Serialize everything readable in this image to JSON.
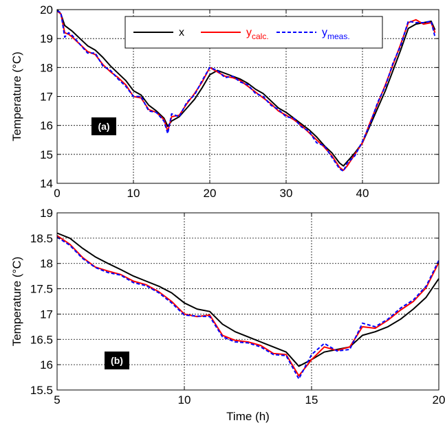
{
  "chart_data": [
    {
      "type": "line",
      "panel_label": "(a)",
      "ylabel": "Temperature (°C)",
      "xlabel": "",
      "xlim": [
        0,
        50
      ],
      "ylim": [
        14,
        20
      ],
      "xticks": [
        0,
        10,
        20,
        30,
        40
      ],
      "yticks": [
        14,
        15,
        16,
        17,
        18,
        19,
        20
      ],
      "grid": true,
      "legend": {
        "position": "top-center",
        "entries": [
          {
            "label": "x",
            "sub": "",
            "color": "#000000",
            "dash": "solid"
          },
          {
            "label": "y",
            "sub": "calc.",
            "color": "#ff0000",
            "dash": "solid"
          },
          {
            "label": "y",
            "sub": "meas.",
            "color": "#0000ff",
            "dash": "dashed"
          }
        ]
      },
      "series": [
        {
          "key": "x",
          "color": "#000000",
          "dash": "solid",
          "x": [
            0,
            0.5,
            1,
            1.5,
            2,
            3,
            4,
            5,
            6,
            7,
            8,
            9,
            10,
            11,
            12,
            13,
            14,
            14.5,
            15,
            16,
            17,
            18,
            19,
            20,
            21,
            22,
            23,
            24,
            25,
            26,
            27,
            28,
            29,
            30,
            31,
            32,
            33,
            34,
            35,
            36,
            37,
            37.5,
            38,
            39,
            40,
            41,
            42,
            43,
            44,
            45,
            46,
            47,
            48,
            49,
            49.5
          ],
          "y": [
            20,
            19.85,
            19.45,
            19.35,
            19.25,
            19.0,
            18.75,
            18.6,
            18.35,
            18.05,
            17.8,
            17.55,
            17.2,
            17.05,
            16.7,
            16.5,
            16.25,
            15.97,
            16.15,
            16.3,
            16.6,
            16.9,
            17.3,
            17.75,
            17.9,
            17.8,
            17.7,
            17.6,
            17.45,
            17.25,
            17.1,
            16.85,
            16.6,
            16.45,
            16.25,
            16.05,
            15.85,
            15.6,
            15.3,
            15.05,
            14.7,
            14.6,
            14.75,
            15.05,
            15.4,
            16.0,
            16.6,
            17.2,
            17.9,
            18.6,
            19.35,
            19.5,
            19.55,
            19.6,
            19.3
          ]
        },
        {
          "key": "ycalc",
          "color": "#ff0000",
          "dash": "solid",
          "x": [
            0,
            0.5,
            1,
            1.5,
            2,
            3,
            4,
            5,
            6,
            7,
            8,
            9,
            10,
            11,
            12,
            13,
            14,
            14.5,
            15,
            16,
            17,
            18,
            19,
            20,
            21,
            22,
            23,
            24,
            25,
            26,
            27,
            28,
            29,
            30,
            31,
            32,
            33,
            34,
            35,
            36,
            37,
            37.5,
            38,
            39,
            40,
            41,
            42,
            43,
            44,
            45,
            46,
            47,
            48,
            49,
            49.5
          ],
          "y": [
            19.95,
            19.85,
            19.2,
            19.15,
            19.05,
            18.8,
            18.55,
            18.45,
            18.1,
            17.85,
            17.65,
            17.4,
            17.0,
            16.95,
            16.55,
            16.45,
            16.2,
            15.8,
            16.3,
            16.35,
            16.75,
            17.1,
            17.5,
            18.0,
            17.85,
            17.7,
            17.65,
            17.55,
            17.35,
            17.15,
            16.95,
            16.75,
            16.5,
            16.35,
            16.2,
            16.0,
            15.75,
            15.5,
            15.25,
            14.95,
            14.55,
            14.45,
            14.6,
            15.0,
            15.4,
            16.1,
            16.75,
            17.4,
            18.1,
            18.8,
            19.55,
            19.65,
            19.5,
            19.55,
            19.2
          ]
        },
        {
          "key": "ymeas",
          "color": "#0000ff",
          "dash": "dashed",
          "x": [
            0,
            0.5,
            1,
            1.5,
            2,
            3,
            4,
            5,
            6,
            7,
            8,
            9,
            10,
            11,
            12,
            13,
            14,
            14.5,
            15,
            16,
            17,
            18,
            19,
            20,
            21,
            22,
            23,
            24,
            25,
            26,
            27,
            28,
            29,
            30,
            31,
            32,
            33,
            34,
            35,
            36,
            37,
            37.5,
            38,
            39,
            40,
            41,
            42,
            43,
            44,
            45,
            46,
            47,
            48,
            49,
            49.5
          ],
          "y": [
            19.95,
            19.9,
            19.05,
            19.2,
            19.1,
            18.8,
            18.5,
            18.5,
            18.05,
            17.9,
            17.6,
            17.35,
            17.0,
            17.0,
            16.5,
            16.45,
            16.15,
            15.72,
            16.4,
            16.3,
            16.8,
            17.05,
            17.55,
            18.0,
            17.9,
            17.65,
            17.7,
            17.5,
            17.4,
            17.1,
            17.0,
            16.7,
            16.55,
            16.3,
            16.25,
            15.95,
            15.8,
            15.4,
            15.3,
            14.9,
            14.5,
            14.42,
            14.7,
            14.95,
            15.45,
            16.05,
            16.8,
            17.35,
            18.15,
            18.75,
            19.6,
            19.55,
            19.55,
            19.6,
            19.05
          ]
        }
      ]
    },
    {
      "type": "line",
      "panel_label": "(b)",
      "ylabel": "Temperature (°C)",
      "xlabel": "Time (h)",
      "xlim": [
        5,
        20
      ],
      "ylim": [
        15.5,
        19
      ],
      "xticks": [
        5,
        10,
        15,
        20
      ],
      "yticks": [
        15.5,
        16,
        16.5,
        17,
        17.5,
        18,
        18.5,
        19
      ],
      "grid": true,
      "series": [
        {
          "key": "x",
          "color": "#000000",
          "dash": "solid",
          "x": [
            5,
            5.5,
            6,
            6.5,
            7,
            7.5,
            8,
            8.5,
            9,
            9.5,
            10,
            10.5,
            11,
            11.5,
            12,
            12.5,
            13,
            13.5,
            14,
            14.5,
            15,
            15.5,
            16,
            16.5,
            17,
            17.5,
            18,
            18.5,
            19,
            19.5,
            20
          ],
          "y": [
            18.6,
            18.5,
            18.3,
            18.13,
            18.0,
            17.88,
            17.75,
            17.65,
            17.55,
            17.42,
            17.22,
            17.1,
            17.05,
            16.8,
            16.65,
            16.55,
            16.45,
            16.35,
            16.25,
            15.97,
            16.1,
            16.25,
            16.3,
            16.35,
            16.58,
            16.65,
            16.75,
            16.9,
            17.1,
            17.33,
            17.7
          ]
        },
        {
          "key": "ycalc",
          "color": "#ff0000",
          "dash": "solid",
          "x": [
            5,
            5.5,
            6,
            6.5,
            7,
            7.5,
            8,
            8.5,
            9,
            9.5,
            10,
            10.5,
            11,
            11.5,
            12,
            12.5,
            13,
            13.5,
            14,
            14.5,
            15,
            15.5,
            16,
            16.5,
            17,
            17.5,
            18,
            18.5,
            19,
            19.5,
            20
          ],
          "y": [
            18.55,
            18.38,
            18.12,
            17.93,
            17.85,
            17.78,
            17.65,
            17.58,
            17.44,
            17.25,
            17.0,
            16.95,
            16.98,
            16.58,
            16.48,
            16.45,
            16.38,
            16.22,
            16.2,
            15.78,
            16.1,
            16.35,
            16.28,
            16.35,
            16.75,
            16.72,
            16.88,
            17.08,
            17.25,
            17.52,
            18.02
          ]
        },
        {
          "key": "ymeas",
          "color": "#0000ff",
          "dash": "dashed",
          "x": [
            5,
            5.5,
            6,
            6.5,
            7,
            7.5,
            8,
            8.5,
            9,
            9.5,
            10,
            10.5,
            11,
            11.5,
            12,
            12.5,
            13,
            13.5,
            14,
            14.5,
            15,
            15.5,
            16,
            16.5,
            17,
            17.5,
            18,
            18.5,
            19,
            19.5,
            20
          ],
          "y": [
            18.52,
            18.36,
            18.1,
            17.92,
            17.82,
            17.77,
            17.62,
            17.56,
            17.42,
            17.22,
            16.98,
            16.96,
            16.95,
            16.55,
            16.45,
            16.43,
            16.35,
            16.2,
            16.18,
            15.72,
            16.2,
            16.42,
            16.27,
            16.3,
            16.82,
            16.75,
            16.9,
            17.12,
            17.28,
            17.55,
            18.06
          ]
        }
      ]
    }
  ]
}
